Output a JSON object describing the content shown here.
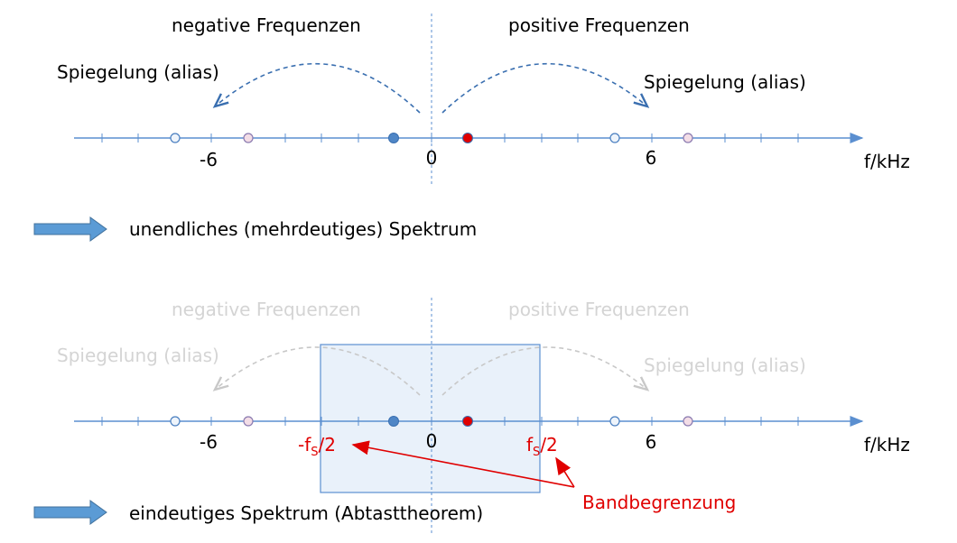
{
  "top": {
    "neg_label": "negative Frequenzen",
    "pos_label": "positive Frequenzen",
    "alias_left": "Spiegelung (alias)",
    "alias_right": "Spiegelung (alias)",
    "tick_neg": "-6",
    "tick_zero": "0",
    "tick_pos": "6",
    "unit": "f/kHz",
    "conclusion": "unendliches (mehrdeutiges) Spektrum"
  },
  "bottom": {
    "neg_label": "negative Frequenzen",
    "pos_label": "positive Frequenzen",
    "alias_left": "Spiegelung (alias)",
    "alias_right": "Spiegelung (alias)",
    "tick_neg": "-6",
    "tick_zero": "0",
    "tick_pos": "6",
    "unit": "f/kHz",
    "fs_neg_prefix": "-f",
    "fs_pos_prefix": "f",
    "fs_sub": "S",
    "fs_suffix": "/2",
    "band_label": "Bandbegrenzung",
    "conclusion": "eindeutiges Spektrum (Abtasttheorem)"
  },
  "colors": {
    "axis": "#5b8fd0",
    "dashed": "#3a6fb0",
    "faded_text": "#d4d4d4",
    "faded_dash": "#c8c8c8",
    "accent_red": "#e00000",
    "band_fill": "#e9f1fa",
    "band_stroke": "#5b8fd0",
    "arrow_fill": "#5b9bd5"
  },
  "icons": [
    "block-arrow-icon"
  ]
}
